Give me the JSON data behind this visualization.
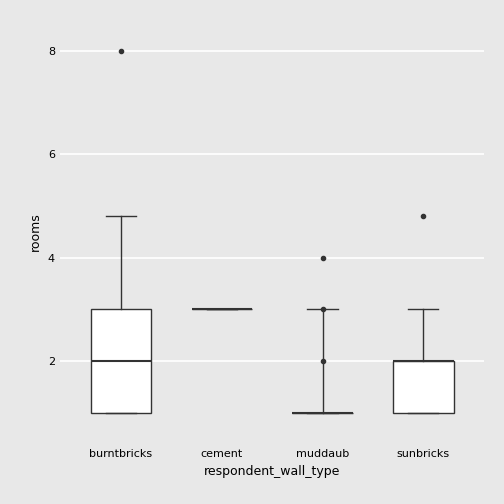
{
  "categories": [
    "burntbricks",
    "cement",
    "muddaub",
    "sunbricks"
  ],
  "xlabel": "respondent_wall_type",
  "ylabel": "rooms",
  "ylim": [
    0.4,
    8.6
  ],
  "yticks": [
    2,
    4,
    6,
    8
  ],
  "background_color": "#e8e8e8",
  "grid_color": "#ffffff",
  "box_color": "#ffffff",
  "box_edge_color": "#333333",
  "boxes": {
    "burntbricks": {
      "q1": 1.0,
      "median": 2.0,
      "q3": 3.0,
      "whislo": 1.0,
      "whishi": 4.8,
      "fliers": [
        8.0
      ]
    },
    "cement": {
      "q1": 3.0,
      "median": 3.0,
      "q3": 3.0,
      "whislo": 3.0,
      "whishi": 3.0,
      "fliers": []
    },
    "muddaub": {
      "q1": 1.0,
      "median": 1.0,
      "q3": 1.0,
      "whislo": 1.0,
      "whishi": 3.0,
      "fliers": [
        2.0,
        3.0,
        4.0
      ]
    },
    "sunbricks": {
      "q1": 1.0,
      "median": 2.0,
      "q3": 2.0,
      "whislo": 1.0,
      "whishi": 3.0,
      "fliers": [
        4.8
      ]
    }
  },
  "box_width": 0.6,
  "linewidth": 1.0,
  "flier_marker": "o",
  "flier_size": 3,
  "label_fontsize": 9,
  "tick_fontsize": 8
}
